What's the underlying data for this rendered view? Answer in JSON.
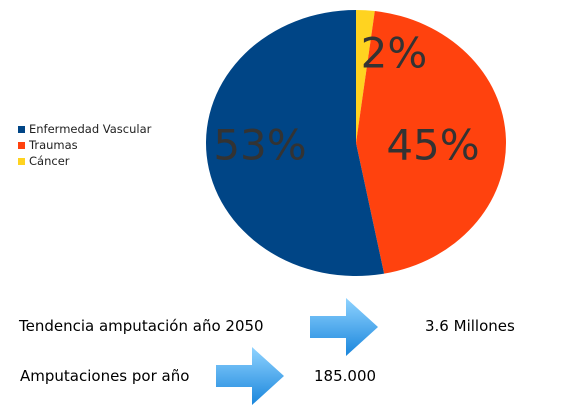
{
  "chart_data": {
    "type": "pie",
    "title": "",
    "categories": [
      "Enfermedad Vascular",
      "Traumas",
      "Cáncer"
    ],
    "values": [
      53,
      45,
      2
    ],
    "labels": [
      "53%",
      "45%",
      "2%"
    ],
    "colors": [
      "#004586",
      "#ff420e",
      "#ffd320"
    ],
    "legend_position": "left"
  },
  "info": {
    "trend_label": "Tendencia amputación año 2050",
    "trend_value": "3.6 Millones",
    "yearly_label": "Amputaciones por año",
    "yearly_value": "185.000"
  },
  "arrow_icon": "arrow-right-icon",
  "arrow_colors": [
    "#8fd3ff",
    "#1a86dc"
  ]
}
